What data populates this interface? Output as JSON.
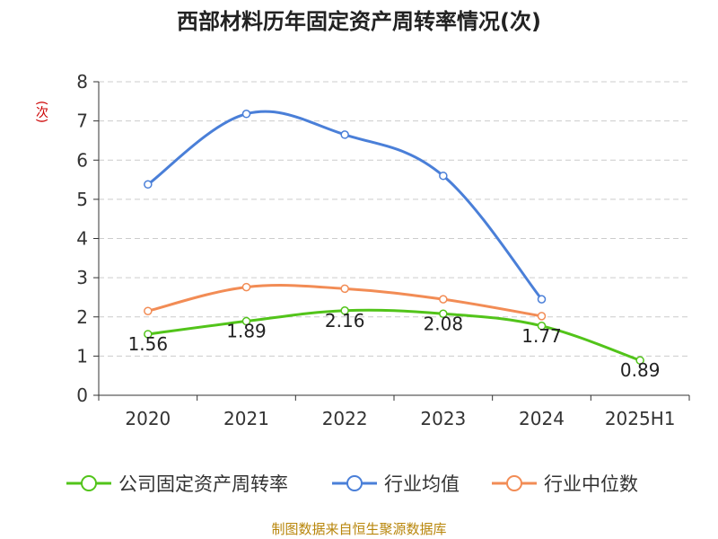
{
  "chart_data": {
    "type": "line",
    "title": "西部材料历年固定资产周转率情况(次)",
    "ylabel": "(次)",
    "categories": [
      "2020",
      "2021",
      "2022",
      "2023",
      "2024",
      "2025H1"
    ],
    "yticks": [
      "0",
      "1",
      "2",
      "3",
      "4",
      "5",
      "6",
      "7",
      "8"
    ],
    "ylim": [
      0,
      8
    ],
    "grid": true,
    "legend_position": "bottom",
    "series": [
      {
        "name": "公司固定资产周转率",
        "color": "#52c41a",
        "values": [
          1.56,
          1.89,
          2.16,
          2.08,
          1.77,
          0.89
        ],
        "labels": [
          "1.56",
          "1.89",
          "2.16",
          "2.08",
          "1.77",
          "0.89"
        ]
      },
      {
        "name": "行业均值",
        "color": "#4a7fd8",
        "values": [
          5.38,
          7.18,
          6.65,
          5.6,
          2.45,
          null
        ]
      },
      {
        "name": "行业中位数",
        "color": "#f28c55",
        "values": [
          2.15,
          2.76,
          2.72,
          2.45,
          2.02,
          null
        ]
      }
    ]
  },
  "footer": "制图数据来自恒生聚源数据库"
}
